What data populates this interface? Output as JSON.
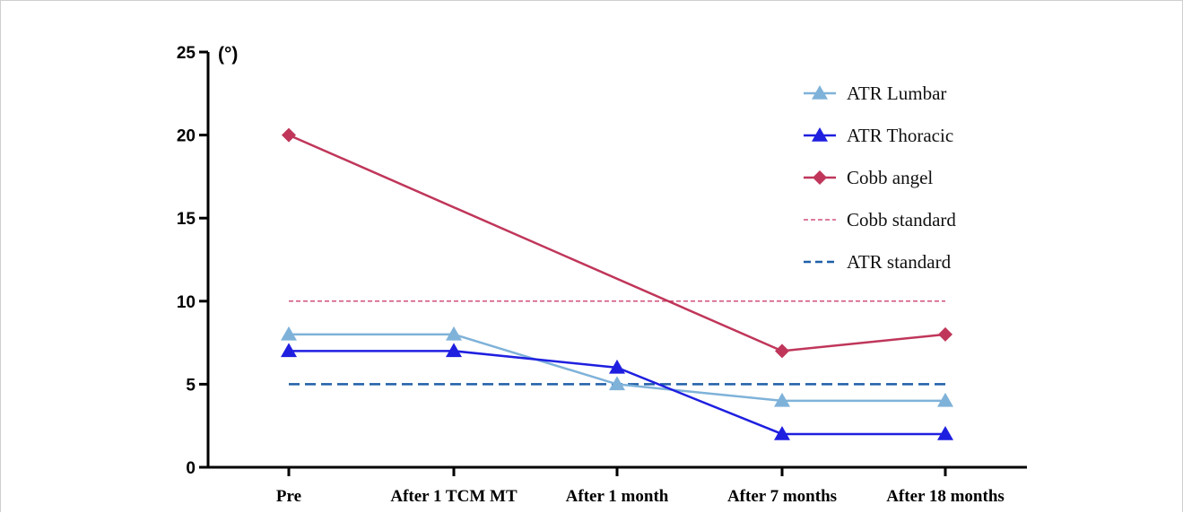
{
  "chart_data": {
    "type": "line",
    "categories": [
      "Pre",
      "After 1 TCM MT",
      "After 1 month",
      "After 7 months",
      "After 18 months"
    ],
    "ylabel": "(°)",
    "ylim": [
      0,
      25
    ],
    "yticks": [
      0,
      5,
      10,
      15,
      20,
      25
    ],
    "grid": false,
    "legend_position": "top-right",
    "series": [
      {
        "name": "ATR Lumbar",
        "values": [
          8,
          8,
          5,
          4,
          4
        ],
        "color": "#7fb2d9",
        "marker": "triangle",
        "line": "solid"
      },
      {
        "name": "ATR Thoracic",
        "values": [
          7,
          7,
          6,
          2,
          2
        ],
        "color": "#1f1fe0",
        "marker": "triangle",
        "line": "solid"
      },
      {
        "name": "Cobb angel",
        "values": [
          20,
          null,
          null,
          7,
          8
        ],
        "color": "#c0365a",
        "marker": "diamond",
        "line": "solid"
      },
      {
        "name": "Cobb standard",
        "values": [
          10,
          10,
          10,
          10,
          10
        ],
        "color": "#d0527a",
        "marker": "none",
        "line": "dotted"
      },
      {
        "name": "ATR standard",
        "values": [
          5,
          5,
          5,
          5,
          5
        ],
        "color": "#1f5fa8",
        "marker": "none",
        "line": "dashed"
      }
    ]
  }
}
